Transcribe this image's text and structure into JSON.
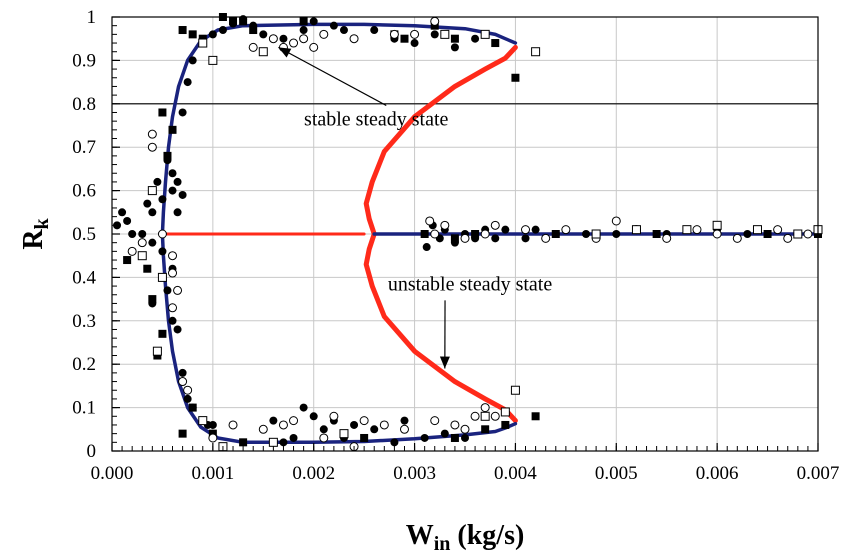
{
  "chart_data": {
    "type": "scatter",
    "xlabel": "W",
    "xlabel_sub": "in",
    "xlabel_unit": " (kg/s)",
    "ylabel": "R",
    "ylabel_sub": "k",
    "xlim": [
      0,
      0.007
    ],
    "ylim": [
      0,
      1
    ],
    "x_major_ticks": [
      0,
      0.001,
      0.002,
      0.003,
      0.004,
      0.005,
      0.006,
      0.007
    ],
    "x_tick_labels": [
      "0.000",
      "0.001",
      "0.002",
      "0.003",
      "0.004",
      "0.005",
      "0.006",
      "0.007"
    ],
    "y_major_ticks": [
      0,
      0.1,
      0.2,
      0.3,
      0.4,
      0.5,
      0.6,
      0.7,
      0.8,
      0.9,
      1
    ],
    "y_tick_labels": [
      "0",
      "0.1",
      "0.2",
      "0.3",
      "0.4",
      "0.5",
      "0.6",
      "0.7",
      "0.8",
      "0.9",
      "1"
    ],
    "grid": true,
    "reference_line_y": 0.8,
    "colors": {
      "stable": "#1a237e",
      "unstable": "#ff2a1a",
      "frame": "#000000"
    },
    "curves": {
      "stable_upper": [
        [
          0.0005,
          0.5
        ],
        [
          0.00051,
          0.55
        ],
        [
          0.00053,
          0.62
        ],
        [
          0.00056,
          0.7
        ],
        [
          0.0006,
          0.77
        ],
        [
          0.00066,
          0.84
        ],
        [
          0.00075,
          0.9
        ],
        [
          0.00088,
          0.945
        ],
        [
          0.00105,
          0.97
        ],
        [
          0.0013,
          0.98
        ],
        [
          0.002,
          0.983
        ],
        [
          0.0025,
          0.983
        ],
        [
          0.003,
          0.98
        ],
        [
          0.0035,
          0.973
        ],
        [
          0.0038,
          0.96
        ],
        [
          0.0039,
          0.95
        ],
        [
          0.004,
          0.94
        ]
      ],
      "stable_lower": [
        [
          0.0005,
          0.5
        ],
        [
          0.00051,
          0.45
        ],
        [
          0.00053,
          0.38
        ],
        [
          0.00056,
          0.3
        ],
        [
          0.0006,
          0.23
        ],
        [
          0.00066,
          0.16
        ],
        [
          0.00075,
          0.1
        ],
        [
          0.00088,
          0.055
        ],
        [
          0.00105,
          0.03
        ],
        [
          0.0013,
          0.02
        ],
        [
          0.002,
          0.02
        ],
        [
          0.0025,
          0.022
        ],
        [
          0.003,
          0.028
        ],
        [
          0.0035,
          0.037
        ],
        [
          0.0038,
          0.045
        ],
        [
          0.0039,
          0.053
        ],
        [
          0.004,
          0.063
        ]
      ],
      "stable_right": [
        [
          0.0026,
          0.5
        ],
        [
          0.007,
          0.5
        ]
      ],
      "unstable_left": [
        [
          0.0005,
          0.5
        ],
        [
          0.0025,
          0.5
        ]
      ],
      "unstable_upper": [
        [
          0.004,
          0.93
        ],
        [
          0.0039,
          0.905
        ],
        [
          0.0037,
          0.88
        ],
        [
          0.0034,
          0.84
        ],
        [
          0.003,
          0.77
        ],
        [
          0.0027,
          0.69
        ],
        [
          0.00258,
          0.62
        ],
        [
          0.00252,
          0.57
        ],
        [
          0.00255,
          0.535
        ],
        [
          0.0026,
          0.5
        ]
      ],
      "unstable_lower": [
        [
          0.0026,
          0.5
        ],
        [
          0.00255,
          0.465
        ],
        [
          0.00252,
          0.43
        ],
        [
          0.00258,
          0.38
        ],
        [
          0.0027,
          0.31
        ],
        [
          0.003,
          0.23
        ],
        [
          0.0034,
          0.16
        ],
        [
          0.0037,
          0.12
        ],
        [
          0.0039,
          0.095
        ],
        [
          0.004,
          0.07
        ]
      ]
    },
    "series": [
      {
        "marker": "filled-circle",
        "points": [
          [
            5e-05,
            0.52
          ],
          [
            0.0001,
            0.55
          ],
          [
            0.00015,
            0.53
          ],
          [
            0.0002,
            0.5
          ],
          [
            0.0003,
            0.5
          ],
          [
            0.00035,
            0.57
          ],
          [
            0.0004,
            0.48
          ],
          [
            0.0004,
            0.55
          ],
          [
            0.00045,
            0.62
          ],
          [
            0.0005,
            0.58
          ],
          [
            0.0005,
            0.46
          ],
          [
            0.00055,
            0.67
          ],
          [
            0.0006,
            0.6
          ],
          [
            0.0006,
            0.64
          ],
          [
            0.00065,
            0.62
          ],
          [
            0.0007,
            0.59
          ],
          [
            0.00065,
            0.55
          ],
          [
            0.0006,
            0.42
          ],
          [
            0.00055,
            0.37
          ],
          [
            0.0006,
            0.3
          ],
          [
            0.00065,
            0.28
          ],
          [
            0.0004,
            0.34
          ],
          [
            0.0007,
            0.18
          ],
          [
            0.00075,
            0.12
          ],
          [
            0.0008,
            0.1
          ],
          [
            0.0009,
            0.07
          ],
          [
            0.00095,
            0.06
          ],
          [
            0.001,
            0.06
          ],
          [
            0.0007,
            0.78
          ],
          [
            0.00075,
            0.85
          ],
          [
            0.0008,
            0.9
          ],
          [
            0.0009,
            0.94
          ],
          [
            0.001,
            0.96
          ],
          [
            0.0011,
            0.97
          ],
          [
            0.0012,
            0.985
          ],
          [
            0.0013,
            0.995
          ],
          [
            0.0014,
            0.98
          ],
          [
            0.0015,
            0.96
          ],
          [
            0.0017,
            0.95
          ],
          [
            0.0019,
            0.97
          ],
          [
            0.002,
            0.99
          ],
          [
            0.0021,
            0.96
          ],
          [
            0.0022,
            0.98
          ],
          [
            0.0023,
            0.97
          ],
          [
            0.0024,
            0.95
          ],
          [
            0.0026,
            0.97
          ],
          [
            0.0028,
            0.95
          ],
          [
            0.003,
            0.94
          ],
          [
            0.0032,
            0.96
          ],
          [
            0.0034,
            0.93
          ],
          [
            0.0036,
            0.95
          ],
          [
            0.0016,
            0.07
          ],
          [
            0.0017,
            0.02
          ],
          [
            0.0018,
            0.03
          ],
          [
            0.0019,
            0.1
          ],
          [
            0.002,
            0.08
          ],
          [
            0.0021,
            0.05
          ],
          [
            0.0022,
            0.07
          ],
          [
            0.0023,
            0.03
          ],
          [
            0.0024,
            0.06
          ],
          [
            0.0026,
            0.05
          ],
          [
            0.0028,
            0.02
          ],
          [
            0.0029,
            0.07
          ],
          [
            0.0031,
            0.03
          ],
          [
            0.0033,
            0.04
          ],
          [
            0.0035,
            0.03
          ],
          [
            0.00312,
            0.47
          ],
          [
            0.00318,
            0.52
          ],
          [
            0.00325,
            0.49
          ],
          [
            0.0033,
            0.51
          ],
          [
            0.0034,
            0.48
          ],
          [
            0.0035,
            0.5
          ],
          [
            0.0036,
            0.49
          ],
          [
            0.0037,
            0.51
          ],
          [
            0.0038,
            0.49
          ],
          [
            0.0039,
            0.51
          ],
          [
            0.0041,
            0.49
          ],
          [
            0.0042,
            0.51
          ],
          [
            0.0044,
            0.5
          ],
          [
            0.0047,
            0.5
          ],
          [
            0.005,
            0.5
          ],
          [
            0.0055,
            0.5
          ],
          [
            0.006,
            0.51
          ],
          [
            0.0063,
            0.5
          ]
        ]
      },
      {
        "marker": "filled-square",
        "points": [
          [
            0.00015,
            0.44
          ],
          [
            0.00035,
            0.42
          ],
          [
            0.0004,
            0.35
          ],
          [
            0.0005,
            0.27
          ],
          [
            0.00045,
            0.22
          ],
          [
            0.00055,
            0.68
          ],
          [
            0.0006,
            0.74
          ],
          [
            0.0005,
            0.78
          ],
          [
            0.0007,
            0.97
          ],
          [
            0.0008,
            0.96
          ],
          [
            0.0009,
            0.95
          ],
          [
            0.0011,
            1.0
          ],
          [
            0.0012,
            0.99
          ],
          [
            0.0013,
            0.99
          ],
          [
            0.0014,
            0.97
          ],
          [
            0.0019,
            0.99
          ],
          [
            0.0028,
            0.96
          ],
          [
            0.0029,
            0.95
          ],
          [
            0.0032,
            0.98
          ],
          [
            0.0034,
            0.95
          ],
          [
            0.0038,
            0.94
          ],
          [
            0.004,
            0.86
          ],
          [
            0.0008,
            0.1
          ],
          [
            0.001,
            0.04
          ],
          [
            0.0007,
            0.04
          ],
          [
            0.0013,
            0.02
          ],
          [
            0.0025,
            0.03
          ],
          [
            0.0034,
            0.03
          ],
          [
            0.0037,
            0.05
          ],
          [
            0.0039,
            0.06
          ],
          [
            0.0042,
            0.08
          ],
          [
            0.0031,
            0.5
          ],
          [
            0.0034,
            0.49
          ],
          [
            0.0036,
            0.5
          ],
          [
            0.0044,
            0.5
          ],
          [
            0.0054,
            0.5
          ],
          [
            0.0065,
            0.5
          ],
          [
            0.007,
            0.5
          ]
        ]
      },
      {
        "marker": "open-circle",
        "points": [
          [
            0.0002,
            0.46
          ],
          [
            0.0003,
            0.48
          ],
          [
            0.0004,
            0.7
          ],
          [
            0.0004,
            0.73
          ],
          [
            0.0005,
            0.5
          ],
          [
            0.0006,
            0.45
          ],
          [
            0.0006,
            0.41
          ],
          [
            0.00065,
            0.37
          ],
          [
            0.0006,
            0.33
          ],
          [
            0.0007,
            0.16
          ],
          [
            0.00075,
            0.14
          ],
          [
            0.001,
            0.03
          ],
          [
            0.0012,
            0.06
          ],
          [
            0.0015,
            0.05
          ],
          [
            0.0017,
            0.06
          ],
          [
            0.0018,
            0.07
          ],
          [
            0.0021,
            0.03
          ],
          [
            0.0022,
            0.08
          ],
          [
            0.0024,
            0.01
          ],
          [
            0.0025,
            0.07
          ],
          [
            0.0027,
            0.06
          ],
          [
            0.0029,
            0.05
          ],
          [
            0.0032,
            0.07
          ],
          [
            0.0034,
            0.06
          ],
          [
            0.0035,
            0.05
          ],
          [
            0.0036,
            0.08
          ],
          [
            0.0037,
            0.1
          ],
          [
            0.0038,
            0.08
          ],
          [
            0.0014,
            0.93
          ],
          [
            0.0016,
            0.95
          ],
          [
            0.0017,
            0.93
          ],
          [
            0.0018,
            0.94
          ],
          [
            0.0019,
            0.95
          ],
          [
            0.002,
            0.93
          ],
          [
            0.0021,
            0.96
          ],
          [
            0.0024,
            0.95
          ],
          [
            0.0028,
            0.96
          ],
          [
            0.003,
            0.96
          ],
          [
            0.0032,
            0.99
          ],
          [
            0.00315,
            0.53
          ],
          [
            0.0032,
            0.5
          ],
          [
            0.0033,
            0.52
          ],
          [
            0.0035,
            0.49
          ],
          [
            0.0037,
            0.5
          ],
          [
            0.0038,
            0.52
          ],
          [
            0.0041,
            0.51
          ],
          [
            0.0043,
            0.49
          ],
          [
            0.0045,
            0.51
          ],
          [
            0.0048,
            0.49
          ],
          [
            0.005,
            0.53
          ],
          [
            0.0052,
            0.51
          ],
          [
            0.0055,
            0.49
          ],
          [
            0.0058,
            0.51
          ],
          [
            0.006,
            0.5
          ],
          [
            0.0062,
            0.49
          ],
          [
            0.0066,
            0.51
          ],
          [
            0.0067,
            0.49
          ],
          [
            0.0069,
            0.5
          ]
        ]
      },
      {
        "marker": "open-square",
        "points": [
          [
            0.0004,
            0.6
          ],
          [
            0.0005,
            0.4
          ],
          [
            0.0003,
            0.45
          ],
          [
            0.00045,
            0.23
          ],
          [
            0.0009,
            0.94
          ],
          [
            0.001,
            0.9
          ],
          [
            0.0015,
            0.92
          ],
          [
            0.0033,
            0.96
          ],
          [
            0.0037,
            0.96
          ],
          [
            0.0042,
            0.92
          ],
          [
            0.0009,
            0.07
          ],
          [
            0.0011,
            0.01
          ],
          [
            0.0016,
            0.02
          ],
          [
            0.0023,
            0.04
          ],
          [
            0.0037,
            0.08
          ],
          [
            0.004,
            0.14
          ],
          [
            0.0039,
            0.09
          ],
          [
            0.0048,
            0.5
          ],
          [
            0.0052,
            0.51
          ],
          [
            0.0057,
            0.51
          ],
          [
            0.006,
            0.52
          ],
          [
            0.0064,
            0.51
          ],
          [
            0.0068,
            0.5
          ],
          [
            0.007,
            0.51
          ]
        ]
      }
    ],
    "annotations": [
      {
        "text": "stable steady state",
        "x": 0.00262,
        "y": 0.75,
        "arrow_to": [
          0.00165,
          0.93
        ]
      },
      {
        "text": "unstable steady state",
        "x": 0.00355,
        "y": 0.37,
        "arrow_to": [
          0.0033,
          0.19
        ]
      }
    ]
  }
}
